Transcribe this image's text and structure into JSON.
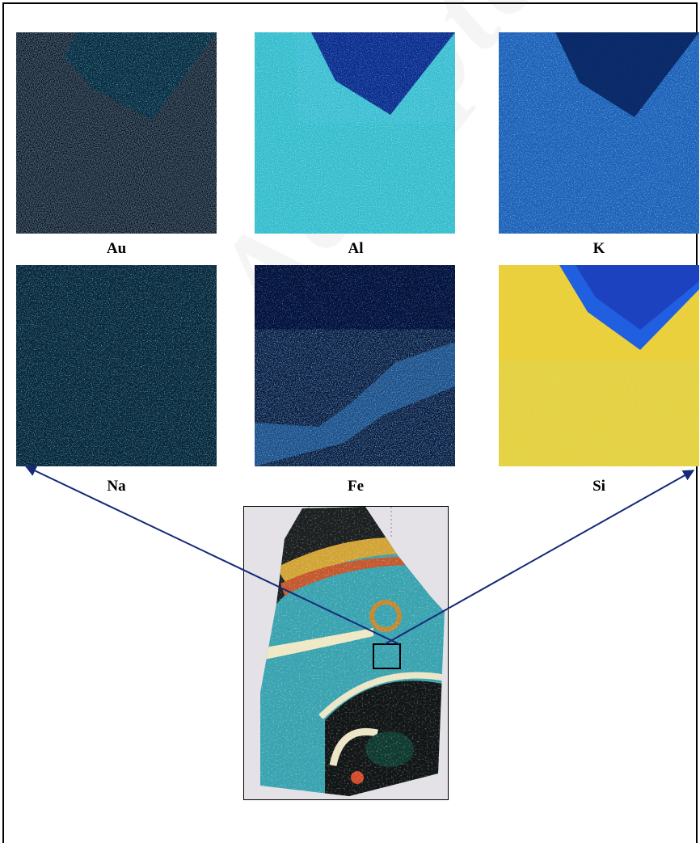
{
  "figure": {
    "elements": [
      "Au",
      "Al",
      "K",
      "Na",
      "Fe",
      "Si"
    ],
    "watermark": "Accepted Manuscript"
  }
}
